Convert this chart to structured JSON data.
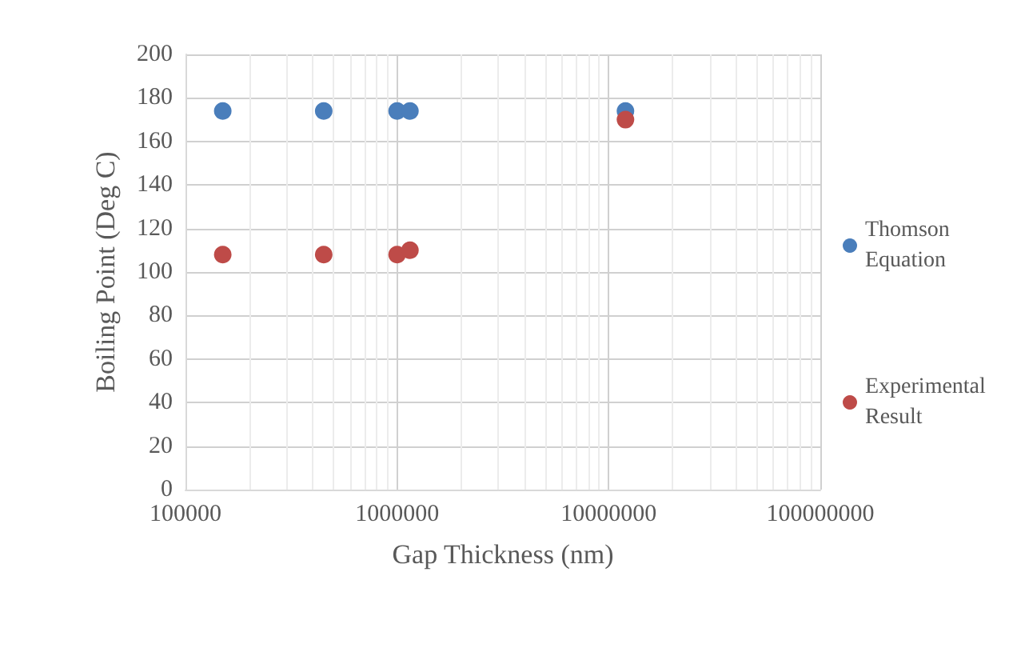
{
  "chart_data": {
    "type": "scatter",
    "xlabel": "Gap Thickness (nm)",
    "ylabel": "Boiling Point (Deg C)",
    "log": "x",
    "grid": true,
    "legend": "right",
    "marker": "circle",
    "xlim": [
      100000,
      100000000
    ],
    "xticks": [
      100000,
      1000000,
      10000000,
      100000000
    ],
    "ylim": [
      0,
      200
    ],
    "yticks": [
      0,
      20,
      40,
      60,
      80,
      100,
      120,
      140,
      160,
      180,
      200
    ],
    "x": [
      150000,
      450000,
      1000000,
      1150000,
      12000000
    ],
    "series": [
      {
        "name": "Thomson Equation",
        "color": "#4a7ebb",
        "values": [
          174,
          174,
          174,
          174,
          174
        ]
      },
      {
        "name": "Experimental Result",
        "color": "#be4b48",
        "values": [
          108,
          108,
          108,
          110,
          170
        ]
      }
    ]
  }
}
